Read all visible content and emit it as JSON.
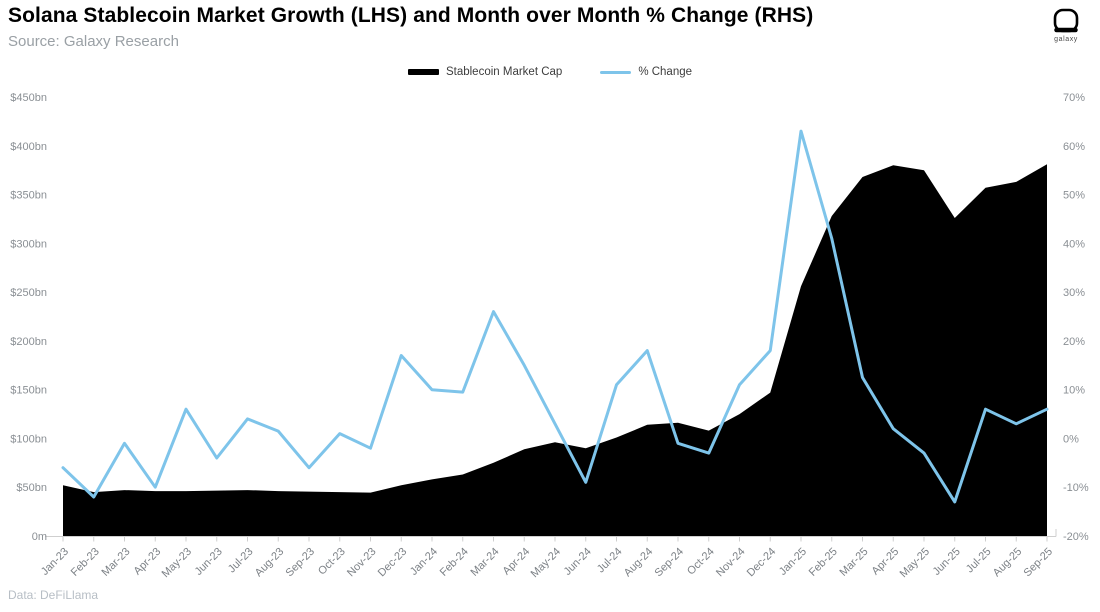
{
  "header": {
    "title": "Solana Stablecoin Market Growth (LHS) and Month over Month % Change (RHS)",
    "source": "Source: Galaxy Research",
    "logo_text": "galaxy"
  },
  "legend": [
    {
      "label": "Stablecoin Market Cap",
      "color": "#000000",
      "style": "thick-line"
    },
    {
      "label": "% Change",
      "color": "#7EC4EA",
      "style": "line"
    }
  ],
  "footer": {
    "data_note": "Data: DeFiLlama"
  },
  "chart_data": {
    "type": "combo-area-line",
    "title": "Solana Stablecoin Market Growth (LHS) and Month over Month % Change (RHS)",
    "grid": false,
    "legend_position": "top-center",
    "categories": [
      "Jan-23",
      "Feb-23",
      "Mar-23",
      "Apr-23",
      "May-23",
      "Jun-23",
      "Jul-23",
      "Aug-23",
      "Sep-23",
      "Oct-23",
      "Nov-23",
      "Dec-23",
      "Jan-24",
      "Feb-24",
      "Mar-24",
      "Apr-24",
      "May-24",
      "Jun-24",
      "Jul-24",
      "Aug-24",
      "Sep-24",
      "Oct-24",
      "Nov-24",
      "Dec-24",
      "Jan-25",
      "Feb-25",
      "Mar-25",
      "Apr-25",
      "May-25",
      "Jun-25",
      "Jul-25",
      "Aug-25",
      "Sep-25"
    ],
    "series": [
      {
        "name": "Stablecoin Market Cap",
        "type": "area",
        "axis": "left",
        "unit": "$bn",
        "color": "#000000",
        "values": [
          52,
          45,
          47,
          46,
          46,
          46.5,
          47,
          46,
          45.5,
          45,
          44.5,
          52,
          58,
          63,
          75,
          89,
          96,
          90,
          101,
          114,
          116,
          108,
          125,
          147,
          256,
          328,
          368,
          380,
          375,
          326,
          357,
          363,
          381
        ]
      },
      {
        "name": "% Change",
        "type": "line",
        "axis": "right",
        "unit": "%",
        "color": "#7EC4EA",
        "values": [
          -6,
          -12,
          -1,
          -10,
          6,
          -4,
          4,
          1.5,
          -6,
          1,
          -2,
          17,
          10,
          9.5,
          26,
          15,
          3,
          -9,
          11,
          18,
          -1,
          -3,
          11,
          18,
          63,
          41,
          12.5,
          2,
          -3,
          -13,
          6,
          3,
          6
        ]
      }
    ],
    "left_axis": {
      "label_side": "left",
      "min": 0,
      "max": 450,
      "tick_labels": [
        "$450bn",
        "$400bn",
        "$350bn",
        "$300bn",
        "$250bn",
        "$200bn",
        "$150bn",
        "$100bn",
        "$50bn",
        "0m"
      ]
    },
    "right_axis": {
      "label_side": "right",
      "min": -20,
      "max": 70,
      "tick_labels": [
        "70%",
        "60%",
        "50%",
        "40%",
        "30%",
        "20%",
        "10%",
        "0%",
        "-10%",
        "-20%"
      ]
    }
  }
}
